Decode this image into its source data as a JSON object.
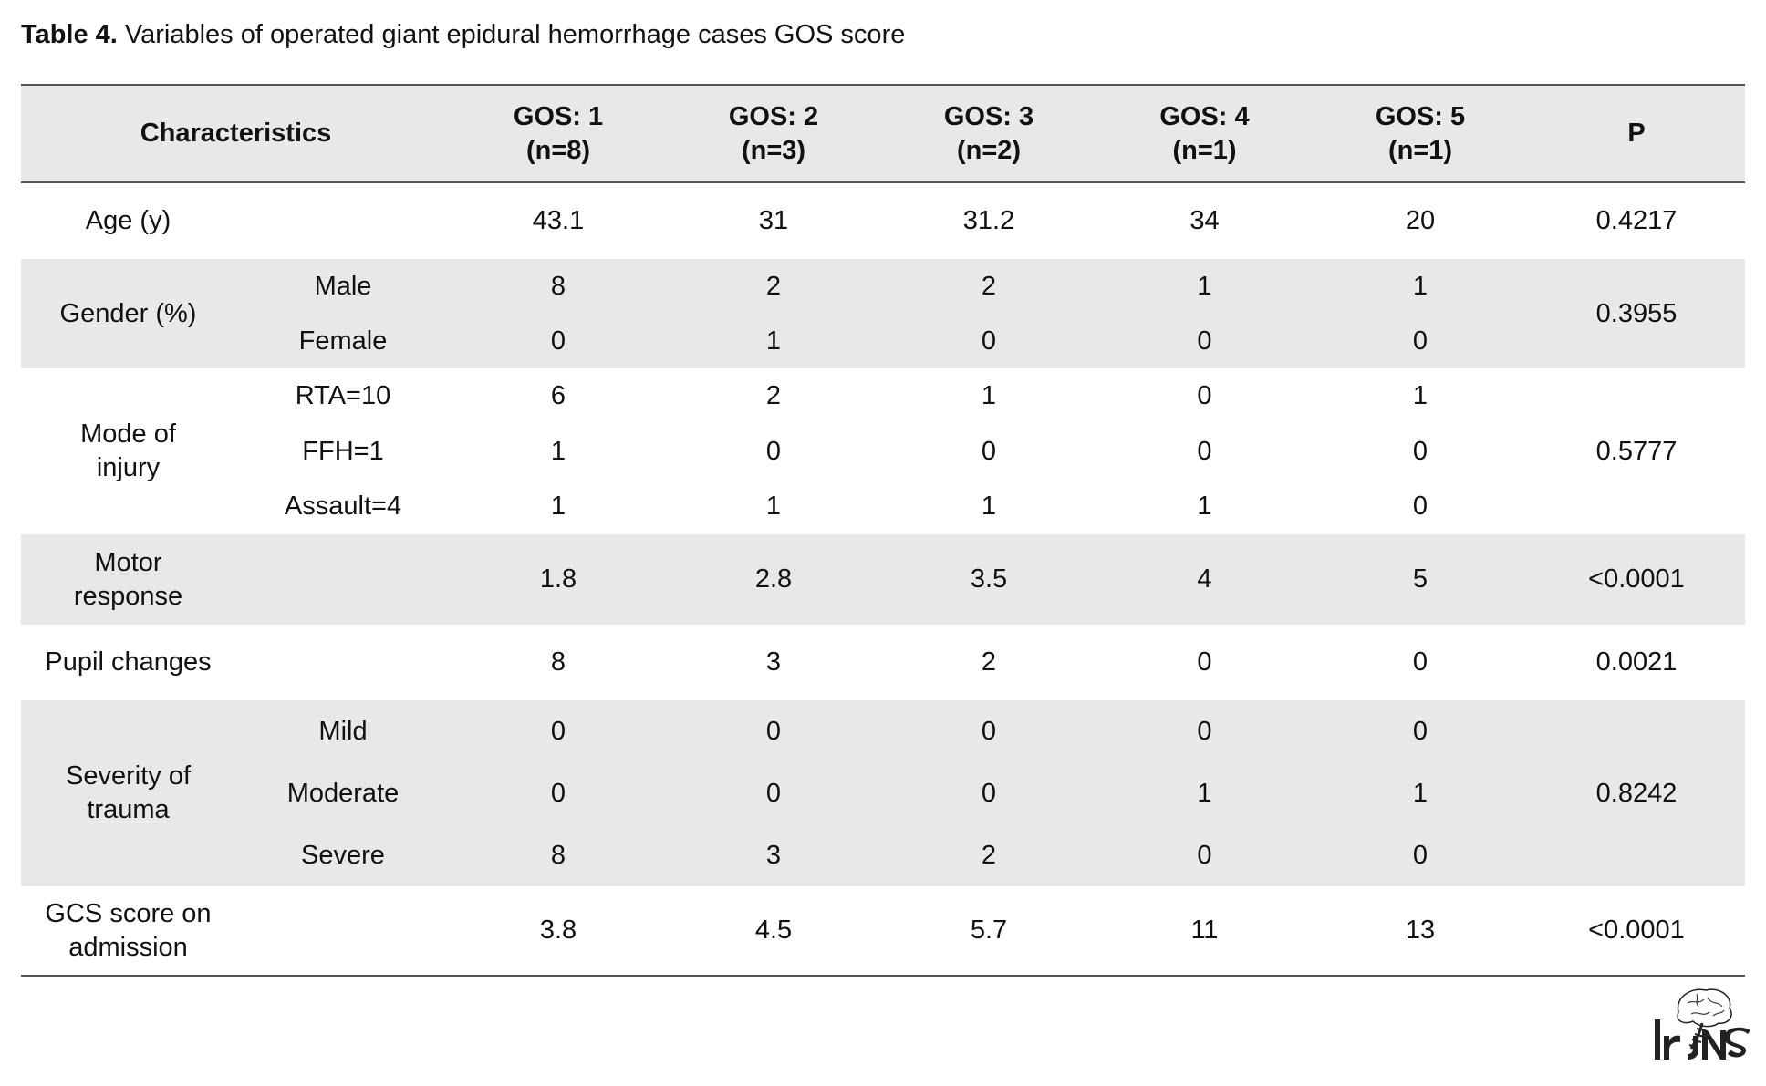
{
  "caption": {
    "label": "Table 4.",
    "text": "Variables of operated giant epidural hemorrhage cases GOS score"
  },
  "header": {
    "characteristics": "Characteristics",
    "cols": [
      {
        "line1": "GOS: 1",
        "line2": "(n=8)"
      },
      {
        "line1": "GOS: 2",
        "line2": "(n=3)"
      },
      {
        "line1": "GOS: 3",
        "line2": "(n=2)"
      },
      {
        "line1": "GOS: 4",
        "line2": "(n=1)"
      },
      {
        "line1": "GOS: 5",
        "line2": "(n=1)"
      }
    ],
    "p": "P"
  },
  "rows": {
    "age": {
      "label": "Age (y)",
      "values": [
        "43.1",
        "31",
        "31.2",
        "34",
        "20"
      ],
      "p": "0.4217"
    },
    "gender": {
      "label": "Gender (%)",
      "p": "0.3955",
      "sub": [
        {
          "label": "Male",
          "values": [
            "8",
            "2",
            "2",
            "1",
            "1"
          ]
        },
        {
          "label": "Female",
          "values": [
            "0",
            "1",
            "0",
            "0",
            "0"
          ]
        }
      ]
    },
    "mode": {
      "label_line1": "Mode of",
      "label_line2": "injury",
      "p": "0.5777",
      "sub": [
        {
          "label": "RTA=10",
          "values": [
            "6",
            "2",
            "1",
            "0",
            "1"
          ]
        },
        {
          "label": "FFH=1",
          "values": [
            "1",
            "0",
            "0",
            "0",
            "0"
          ]
        },
        {
          "label": "Assault=4",
          "values": [
            "1",
            "1",
            "1",
            "1",
            "0"
          ]
        }
      ]
    },
    "motor": {
      "label_line1": "Motor",
      "label_line2": "response",
      "values": [
        "1.8",
        "2.8",
        "3.5",
        "4",
        "5"
      ],
      "p": "<0.0001"
    },
    "pupil": {
      "label": "Pupil changes",
      "values": [
        "8",
        "3",
        "2",
        "0",
        "0"
      ],
      "p": "0.0021"
    },
    "severity": {
      "label_line1": "Severity of",
      "label_line2": "trauma",
      "p": "0.8242",
      "sub": [
        {
          "label": "Mild",
          "values": [
            "0",
            "0",
            "0",
            "0",
            "0"
          ]
        },
        {
          "label": "Moderate",
          "values": [
            "0",
            "0",
            "0",
            "1",
            "1"
          ]
        },
        {
          "label": "Severe",
          "values": [
            "8",
            "3",
            "2",
            "0",
            "0"
          ]
        }
      ]
    },
    "gcs": {
      "label_line1": "GCS score on",
      "label_line2": "admission",
      "values": [
        "3.8",
        "4.5",
        "5.7",
        "11",
        "13"
      ],
      "p": "<0.0001"
    }
  },
  "logo": {
    "text": "IrJNS",
    "icon": "brain-spine-logo-icon"
  }
}
